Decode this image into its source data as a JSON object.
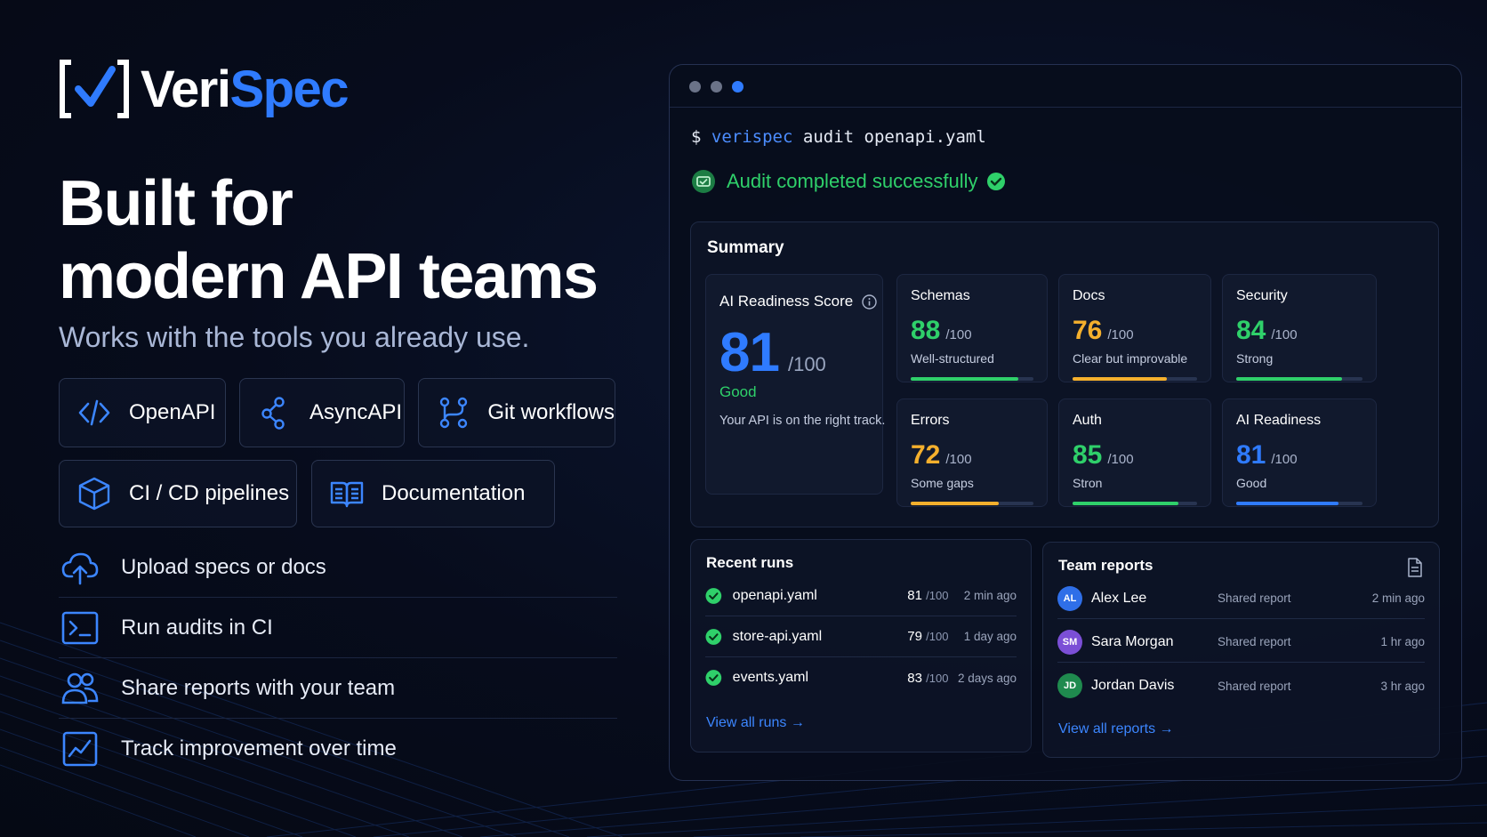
{
  "brand": {
    "name_part1": "Veri",
    "name_part2": "Spec",
    "colors": {
      "accent": "#2f7bff",
      "success": "#2fd06a",
      "warning": "#f5b02d"
    }
  },
  "hero": {
    "title_line1": "Built for",
    "title_line2": "modern API teams",
    "subtitle": "Works with the tools you already use."
  },
  "tools": [
    {
      "label": "OpenAPI",
      "icon": "code-brackets-icon"
    },
    {
      "label": "AsyncAPI",
      "icon": "share-nodes-icon"
    },
    {
      "label": "Git workflows",
      "icon": "git-branch-icon"
    },
    {
      "label": "CI / CD pipelines",
      "icon": "cube-icon"
    },
    {
      "label": "Documentation",
      "icon": "open-book-icon"
    }
  ],
  "features": [
    {
      "label": "Upload specs or docs",
      "icon": "cloud-upload-icon"
    },
    {
      "label": "Run audits in CI",
      "icon": "terminal-icon"
    },
    {
      "label": "Share reports with your team",
      "icon": "users-icon"
    },
    {
      "label": "Track improvement over time",
      "icon": "trend-chart-icon"
    }
  ],
  "terminal": {
    "prompt": "$",
    "command_keyword": "verispec",
    "command_args": "audit openapi.yaml",
    "status": "Audit completed successfully"
  },
  "summary": {
    "title": "Summary",
    "ai_score": {
      "label": "AI Readiness Score",
      "value": "81",
      "denominator": "/100",
      "quality": "Good",
      "description": "Your API is on the right track."
    },
    "metrics": [
      {
        "title": "Schemas",
        "value": "88",
        "denominator": "/100",
        "quality": "Well-structured",
        "score": 88,
        "color": "#2fd06a"
      },
      {
        "title": "Docs",
        "value": "76",
        "denominator": "/100",
        "quality": "Clear but improvable",
        "score": 76,
        "color": "#f5b02d"
      },
      {
        "title": "Security",
        "value": "84",
        "denominator": "/100",
        "quality": "Strong",
        "score": 84,
        "color": "#2fd06a"
      },
      {
        "title": "Errors",
        "value": "72",
        "denominator": "/100",
        "quality": "Some gaps",
        "score": 72,
        "color": "#f5b02d"
      },
      {
        "title": "Auth",
        "value": "85",
        "denominator": "/100",
        "quality": "Stron",
        "score": 85,
        "color": "#2fd06a"
      },
      {
        "title": "AI Readiness",
        "value": "81",
        "denominator": "/100",
        "quality": "Good",
        "score": 81,
        "color": "#2f7bff"
      }
    ]
  },
  "recent_runs": {
    "title": "Recent runs",
    "items": [
      {
        "file": "openapi.yaml",
        "score": "81",
        "denominator": "/100",
        "when": "2 min ago"
      },
      {
        "file": "store-api.yaml",
        "score": "79",
        "denominator": "/100",
        "when": "1 day ago"
      },
      {
        "file": "events.yaml",
        "score": "83",
        "denominator": "/100",
        "when": "2 days ago"
      }
    ],
    "link": "View all runs →"
  },
  "team_reports": {
    "title": "Team reports",
    "items": [
      {
        "initials": "AL",
        "name": "Alex Lee",
        "action": "Shared report",
        "when": "2 min ago",
        "color": "#2f6fe8"
      },
      {
        "initials": "SM",
        "name": "Sara Morgan",
        "action": "Shared report",
        "when": "1 hr ago",
        "color": "#7b4fd6"
      },
      {
        "initials": "JD",
        "name": "Jordan Davis",
        "action": "Shared report",
        "when": "3 hr ago",
        "color": "#1f8a4e"
      }
    ],
    "link": "View all reports →"
  }
}
